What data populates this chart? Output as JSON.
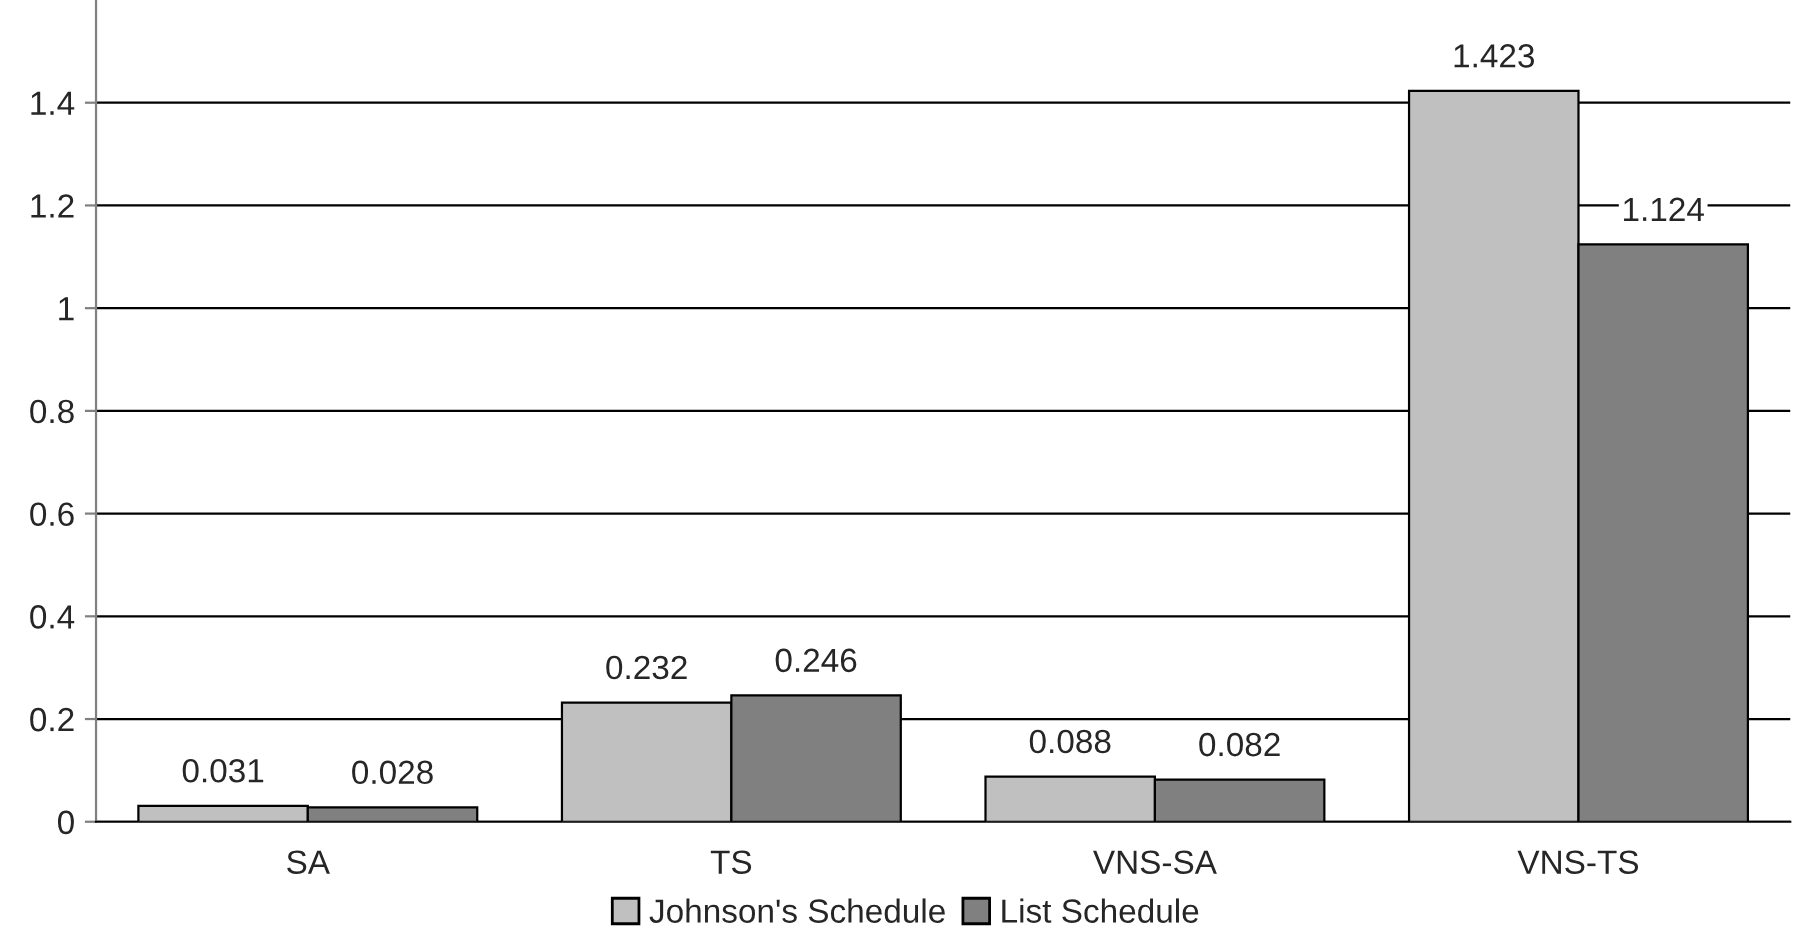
{
  "chart_data": {
    "type": "bar",
    "categories": [
      "SA",
      "TS",
      "VNS-SA",
      "VNS-TS"
    ],
    "series": [
      {
        "name": "Johnson's Schedule",
        "color": "#c0c0c0",
        "values": [
          0.031,
          0.232,
          0.088,
          1.423
        ]
      },
      {
        "name": "List Schedule",
        "color": "#808080",
        "values": [
          0.028,
          0.246,
          0.082,
          1.124
        ]
      }
    ],
    "ylim": [
      0,
      1.6
    ],
    "yticks": [
      0,
      0.2,
      0.4,
      0.6,
      0.8,
      1,
      1.2,
      1.4
    ],
    "grid": "y",
    "legend": "bottom",
    "data_labels": true
  }
}
